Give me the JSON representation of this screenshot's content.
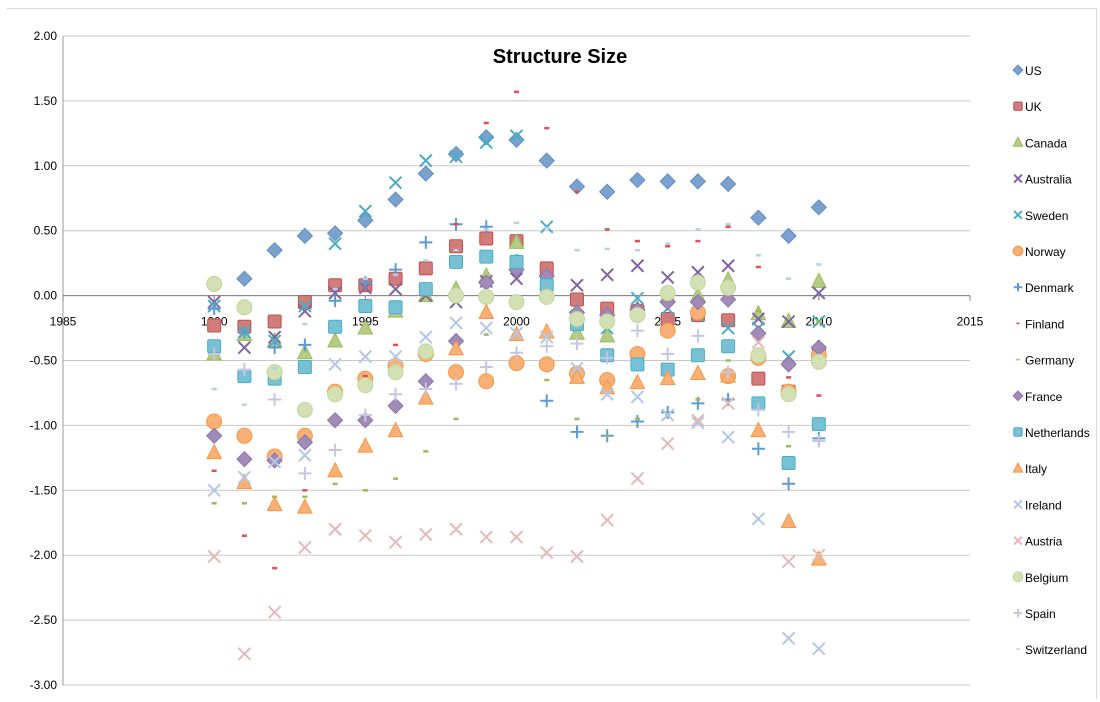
{
  "chart_data": {
    "type": "scatter",
    "title": "Structure Size",
    "xlabel": "",
    "ylabel": "",
    "xlim": [
      1985,
      2015
    ],
    "ylim": [
      -3,
      2
    ],
    "x_ticks": [
      1985,
      1990,
      1995,
      2000,
      2005,
      2010,
      2015
    ],
    "x_tick_labels": [
      "1985",
      "1990",
      "1995",
      "2000",
      "2005",
      "2010",
      "2015"
    ],
    "y_ticks": [
      2,
      1.5,
      1,
      0.5,
      0,
      -0.5,
      -1,
      -1.5,
      -2,
      -2.5,
      -3
    ],
    "y_tick_labels": [
      "2.00",
      "1.50",
      "1.00",
      "0.50",
      "0.00",
      "-0.50",
      "-1.00",
      "-1.50",
      "-2.00",
      "-2.50",
      "-3.00"
    ],
    "grid": true,
    "legend_position": "right",
    "x": [
      1990,
      1991,
      1992,
      1993,
      1994,
      1995,
      1996,
      1997,
      1998,
      1999,
      2000,
      2001,
      2002,
      2003,
      2004,
      2005,
      2006,
      2007,
      2008,
      2009,
      2010
    ],
    "series": [
      {
        "name": "US",
        "marker": "diamond",
        "color": "#4f81bd",
        "values": [
          null,
          0.13,
          0.35,
          0.46,
          0.48,
          0.58,
          0.74,
          0.94,
          1.09,
          1.22,
          1.2,
          1.04,
          0.84,
          0.8,
          0.89,
          0.88,
          0.88,
          0.86,
          0.6,
          0.46,
          0.68
        ]
      },
      {
        "name": "UK",
        "marker": "square",
        "color": "#c0504d",
        "values": [
          -0.23,
          -0.24,
          -0.2,
          -0.05,
          0.08,
          0.08,
          0.13,
          0.21,
          0.38,
          0.44,
          0.42,
          0.21,
          -0.03,
          -0.1,
          -0.12,
          -0.18,
          -0.15,
          -0.19,
          -0.64,
          -0.74,
          -0.45
        ]
      },
      {
        "name": "Canada",
        "marker": "triangle",
        "color": "#9bbb59",
        "values": [
          -0.45,
          -0.3,
          -0.35,
          -0.44,
          -0.35,
          -0.25,
          -0.12,
          0.0,
          0.05,
          0.15,
          0.41,
          0.03,
          -0.29,
          -0.31,
          -0.1,
          0.0,
          0.0,
          0.12,
          -0.14,
          -0.2,
          0.11
        ]
      },
      {
        "name": "Australia",
        "marker": "x",
        "color": "#8064a2",
        "values": [
          -0.05,
          -0.4,
          -0.32,
          -0.12,
          0.02,
          0.06,
          0.05,
          0.0,
          -0.05,
          0.11,
          0.13,
          0.12,
          0.08,
          0.16,
          0.23,
          0.14,
          0.18,
          0.23,
          -0.18,
          -0.2,
          0.02
        ]
      },
      {
        "name": "Sweden",
        "marker": "x",
        "color": "#4bacc6",
        "values": [
          -0.08,
          -0.28,
          -0.35,
          -0.08,
          0.4,
          0.65,
          0.87,
          1.04,
          1.07,
          1.18,
          1.23,
          0.53,
          -0.2,
          -0.25,
          -0.02,
          -0.1,
          -0.15,
          -0.25,
          -0.25,
          -0.47,
          -0.2
        ]
      },
      {
        "name": "Norway",
        "marker": "circle",
        "color": "#f79646",
        "values": [
          -0.97,
          -1.08,
          -1.24,
          -1.08,
          -0.74,
          -0.64,
          -0.54,
          -0.45,
          -0.59,
          -0.66,
          -0.52,
          -0.53,
          -0.6,
          -0.65,
          -0.45,
          -0.27,
          -0.13,
          -0.62,
          -0.48,
          -0.74,
          -0.46
        ]
      },
      {
        "name": "Denmark",
        "marker": "plus",
        "color": "#5b9bd5",
        "values": [
          -0.1,
          -0.28,
          -0.4,
          -0.38,
          -0.04,
          0.1,
          0.2,
          0.41,
          0.55,
          0.53,
          0.27,
          -0.81,
          -1.05,
          -1.08,
          -0.97,
          -0.9,
          -0.83,
          -0.8,
          -1.18,
          -1.45,
          -1.1
        ]
      },
      {
        "name": "Finland",
        "marker": "dash",
        "color": "#e0504d",
        "values": [
          -1.35,
          -1.85,
          -2.1,
          -1.5,
          -0.8,
          -0.62,
          -0.38,
          0.0,
          0.55,
          1.33,
          1.57,
          1.29,
          0.8,
          0.51,
          0.42,
          0.38,
          0.42,
          0.53,
          0.22,
          -0.63,
          -0.77
        ]
      },
      {
        "name": "Germany",
        "marker": "dash",
        "color": "#9bbb59",
        "values": [
          -1.6,
          -1.6,
          -1.55,
          -1.55,
          -1.45,
          -1.5,
          -1.41,
          -1.2,
          -0.95,
          -0.3,
          -0.27,
          -0.65,
          -0.95,
          -1.08,
          -0.95,
          -0.92,
          -0.8,
          -0.5,
          -0.12,
          -1.16,
          -0.2
        ]
      },
      {
        "name": "France",
        "marker": "diamond",
        "color": "#8064a2",
        "values": [
          -1.08,
          -1.26,
          -1.27,
          -1.13,
          -0.96,
          -0.96,
          -0.85,
          -0.66,
          -0.35,
          0.1,
          0.2,
          0.15,
          -0.13,
          -0.15,
          -0.11,
          -0.05,
          -0.05,
          -0.03,
          -0.29,
          -0.53,
          -0.4
        ]
      },
      {
        "name": "Netherlands",
        "marker": "square",
        "color": "#4bacc6",
        "values": [
          -0.39,
          -0.62,
          -0.64,
          -0.55,
          -0.24,
          -0.08,
          -0.09,
          0.05,
          0.26,
          0.3,
          0.26,
          0.08,
          -0.22,
          -0.46,
          -0.53,
          -0.57,
          -0.46,
          -0.39,
          -0.83,
          -1.29,
          -0.99
        ]
      },
      {
        "name": "Italy",
        "marker": "triangle",
        "color": "#f79646",
        "values": [
          -1.21,
          -1.44,
          -1.61,
          -1.63,
          -1.35,
          -1.16,
          -1.04,
          -0.79,
          -0.41,
          -0.13,
          -0.3,
          -0.28,
          -0.63,
          -0.71,
          -0.67,
          -0.64,
          -0.6,
          -0.62,
          -1.04,
          -1.74,
          -2.03
        ]
      },
      {
        "name": "Ireland",
        "marker": "x",
        "color": "#b4c7e7",
        "values": [
          -1.5,
          -1.4,
          -1.28,
          -1.23,
          -0.53,
          -0.47,
          -0.47,
          -0.32,
          -0.21,
          -0.25,
          -0.29,
          -0.32,
          -0.56,
          -0.76,
          -0.78,
          -0.92,
          -0.98,
          -1.09,
          -1.72,
          -2.64,
          -2.72
        ]
      },
      {
        "name": "Austria",
        "marker": "x",
        "color": "#e6b9b8",
        "values": [
          -2.01,
          -2.76,
          -2.44,
          -1.94,
          -1.8,
          -1.85,
          -1.9,
          -1.84,
          -1.8,
          -1.86,
          -1.86,
          -1.98,
          -2.01,
          -1.73,
          -1.41,
          -1.14,
          -0.96,
          -0.83,
          -0.36,
          -2.05,
          -2.0
        ]
      },
      {
        "name": "Belgium",
        "marker": "circle",
        "color": "#c3d69b",
        "values": [
          0.09,
          -0.09,
          -0.59,
          -0.88,
          -0.76,
          -0.69,
          -0.59,
          -0.43,
          0.0,
          -0.01,
          -0.05,
          -0.01,
          -0.18,
          -0.2,
          -0.15,
          0.02,
          0.1,
          0.06,
          -0.46,
          -0.76,
          -0.51
        ]
      },
      {
        "name": "Spain",
        "marker": "plus",
        "color": "#c6c6e0",
        "values": [
          -0.45,
          -0.57,
          -0.8,
          -1.37,
          -1.19,
          -0.92,
          -0.76,
          -0.72,
          -0.68,
          -0.55,
          -0.44,
          -0.39,
          -0.37,
          -0.48,
          -0.27,
          -0.45,
          -0.31,
          -0.59,
          -0.88,
          -1.05,
          -1.12
        ]
      },
      {
        "name": "Switzerland",
        "marker": "dash",
        "color": "#b7cde8",
        "values": [
          -0.72,
          -0.84,
          -0.56,
          -0.22,
          0.05,
          0.13,
          0.16,
          0.27,
          0.35,
          0.51,
          0.56,
          0.52,
          0.35,
          0.36,
          0.35,
          0.4,
          0.51,
          0.55,
          0.31,
          0.13,
          0.24
        ]
      }
    ]
  }
}
